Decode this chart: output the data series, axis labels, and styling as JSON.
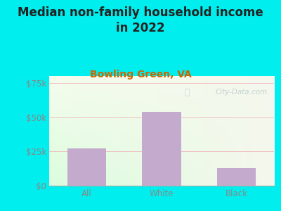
{
  "title": "Median non-family household income\nin 2022",
  "subtitle": "Bowling Green, VA",
  "categories": [
    "All",
    "White",
    "Black"
  ],
  "values": [
    27000,
    54000,
    13000
  ],
  "bar_color": "#C4AACC",
  "outer_bg": "#00EEEE",
  "chart_bg_top_left": "#F0F8EE",
  "chart_bg_top_right": "#FFFFFF",
  "chart_bg_bottom_left": "#D8EED0",
  "chart_bg_bottom_right": "#F5F5EE",
  "yticks": [
    0,
    25000,
    50000,
    75000
  ],
  "ytick_labels": [
    "$0",
    "$25k",
    "$50k",
    "$75k"
  ],
  "ylim": [
    0,
    80000
  ],
  "title_color": "#222222",
  "subtitle_color": "#CC6600",
  "tick_color": "#888888",
  "watermark": "City-Data.com",
  "grid_color": "#F0C0C0",
  "title_fontsize": 12,
  "subtitle_fontsize": 10,
  "tick_fontsize": 8.5
}
